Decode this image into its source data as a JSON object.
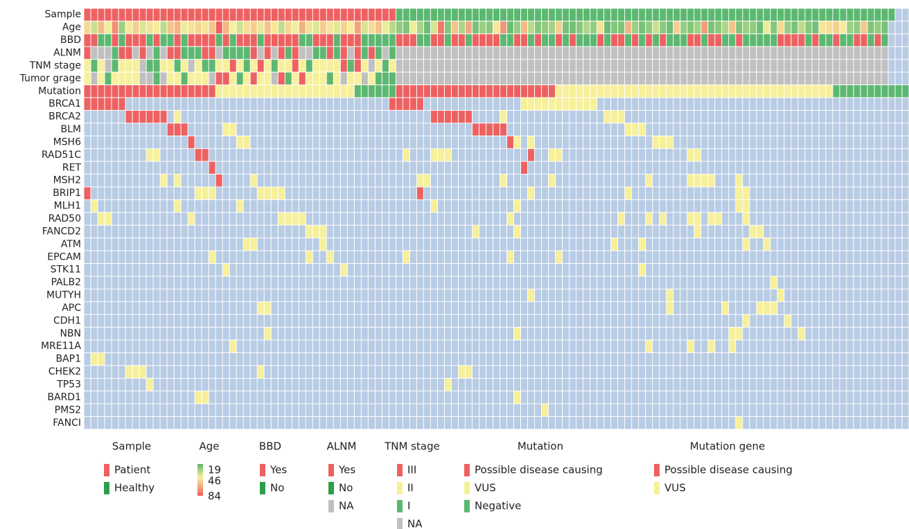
{
  "chart_data": {
    "type": "heatmap",
    "background": "#b8cce4",
    "rows": [
      {
        "name": "Sample",
        "colors": [
          "#ee6161",
          "#5cb870"
        ],
        "values": "000000000000000000000000000000000000000000000111111111111111111111111111111111111111111111111111111111111111111111111"
      },
      {
        "name": "Age",
        "values": [
          52,
          38,
          60,
          45,
          72,
          30,
          48,
          55,
          41,
          50,
          47,
          36,
          58,
          62,
          44,
          50,
          53,
          49,
          57,
          84,
          61,
          46,
          39,
          51,
          55,
          43,
          58,
          48,
          37,
          52,
          45,
          63,
          50,
          41,
          56,
          49,
          42,
          54,
          47,
          66,
          40,
          51,
          58,
          44,
          35,
          28,
          25,
          45,
          32,
          22,
          40,
          78,
          26,
          58,
          33,
          65,
          24,
          30,
          27,
          48,
          70,
          22,
          29,
          60,
          35,
          26,
          28,
          31,
          55,
          24,
          23,
          27,
          34,
          29,
          50,
          21,
          26,
          25,
          62,
          30,
          24,
          28,
          38,
          27,
          22,
          55,
          29,
          26,
          31,
          68,
          24,
          27,
          33,
          58,
          25,
          30,
          28,
          22,
          44,
          26,
          52,
          29,
          24,
          36,
          27,
          23,
          49,
          51,
          55,
          47,
          30,
          28,
          57,
          25,
          29,
          24
        ]
      },
      {
        "name": "BBD",
        "colors": [
          "#ee6161",
          "#5cb870"
        ],
        "values": "00110100010110100001010001000001100010001111100011001001000011001011010111010010101011100100110111110000101101100101"
      },
      {
        "name": "ALNM",
        "colors": [
          "#ee6161",
          "#5cb870",
          "#c0c0c0"
        ],
        "values": "02221002021200111002111102020102211010201012122222222222222222222222222222222222222222222222222222222222222222222222"
      },
      {
        "name": "TNM stage",
        "colors": [
          "#ee6161",
          "#f7f09a",
          "#5cb870",
          "#c0c0c0"
        ],
        "values": "12132111322112131221101210121101211110201312133333333333333333333333333333333333333333333333333333333333333333333333"
      },
      {
        "name": "Tumor grage",
        "colors": [
          "#ee6161",
          "#f7f09a",
          "#5cb870",
          "#c0c0c0"
        ],
        "values": "13121111332311211130012101130210111213113122233333333333333333333333333333333333333333333333333333333333333333333333"
      },
      {
        "name": "Mutation",
        "colors": [
          "#ee6161",
          "#f7f09a",
          "#5cb870"
        ],
        "values": "00000000000000000001111111111111111111122222200000000000000000000000111111111111111111111111111111111111111122222222222"
      },
      {
        "name": "BRCA1",
        "colors": [
          "#ee6161",
          "#f7f09a"
        ],
        "values": "000000......................................00000..............11111111111..........................................."
      },
      {
        "name": "BRCA2",
        "colors": [
          "#ee6161",
          "#f7f09a"
        ],
        "values": "......000000.1....................................000000....1..............111......................................"
      },
      {
        "name": "BLM",
        "colors": [
          "#ee6161",
          "#f7f09a"
        ],
        "values": "............000.....11..................................00000.................111..................................."
      },
      {
        "name": "MSH6",
        "colors": [
          "#ee6161",
          "#f7f09a"
        ],
        "values": "...............0......11.....................................01.1.................111................................"
      },
      {
        "name": "RAD51C",
        "colors": [
          "#ee6161",
          "#f7f09a"
        ],
        "values": ".........11.....00............................1...111...........0..11..................11.............................."
      },
      {
        "name": "RET",
        "colors": [
          "#ee6161",
          "#f7f09a"
        ],
        "values": "..................0............................................0...................................................."
      },
      {
        "name": "MSH2",
        "colors": [
          "#ee6161",
          "#f7f09a"
        ],
        "values": "...........1.1.....0....1.......................11..........1......1.............1.....1111...1....................."
      },
      {
        "name": "BRIP1",
        "colors": [
          "#ee6161",
          "#f7f09a"
        ],
        "values": "0...............111......1111...................0...............1.............1...............11......................"
      },
      {
        "name": "MLH1",
        "colors": [
          "#ee6161",
          "#f7f09a"
        ],
        "values": ".1...........1........1...........................1...........1...............................11......................"
      },
      {
        "name": "RAD50",
        "colors": [
          "#ee6161",
          "#f7f09a"
        ],
        "values": "..11...........1............1111.............................1...............1...1.1...11.11...1...................."
      },
      {
        "name": "FANCD2",
        "colors": [
          "#ee6161",
          "#f7f09a"
        ],
        "values": "................................111.....................1.....1.........................1.......11.................."
      },
      {
        "name": "ATM",
        "colors": [
          "#ee6161",
          "#f7f09a"
        ],
        "values": ".......................11.........1.........................................1...1..............1..1................."
      },
      {
        "name": "EPCAM",
        "colors": [
          "#ee6161",
          "#f7f09a"
        ],
        "values": "..................1.............1..1..........1..............1......1.............................................."
      },
      {
        "name": "STK11",
        "colors": [
          "#ee6161",
          "#f7f09a"
        ],
        "values": "....................1................1..........................................1..................................."
      },
      {
        "name": "PALB2",
        "colors": [
          "#ee6161",
          "#f7f09a"
        ],
        "values": "...................................................................................................1................"
      },
      {
        "name": "MUTYH",
        "colors": [
          "#ee6161",
          "#f7f09a"
        ],
        "values": "................................................................1...................1...............1..............."
      },
      {
        "name": "APC",
        "colors": [
          "#ee6161",
          "#f7f09a"
        ],
        "values": ".........................11.........................................................1.......1....111................"
      },
      {
        "name": "CDH1",
        "colors": [
          "#ee6161",
          "#f7f09a"
        ],
        "values": "...............................................................................................1.....1.............."
      },
      {
        "name": "NBN",
        "colors": [
          "#ee6161",
          "#f7f09a"
        ],
        "values": "..........................1...................................1..............................11........1............."
      },
      {
        "name": "MRE11A",
        "colors": [
          "#ee6161",
          "#f7f09a"
        ],
        "values": ".....................1...........................................................1.....1..1..1......................"
      },
      {
        "name": "BAP1",
        "colors": [
          "#ee6161",
          "#f7f09a"
        ],
        "values": ".11................................................................................................................."
      },
      {
        "name": "CHEK2",
        "colors": [
          "#ee6161",
          "#f7f09a"
        ],
        "values": "......111................1............................11............................................................"
      },
      {
        "name": "TP53",
        "colors": [
          "#ee6161",
          "#f7f09a"
        ],
        "values": ".........1..........................................1..............................................................."
      },
      {
        "name": "BARD1",
        "colors": [
          "#ee6161",
          "#f7f09a"
        ],
        "values": "................11............................................1....................................................."
      },
      {
        "name": "PMS2",
        "colors": [
          "#ee6161",
          "#f7f09a"
        ],
        "values": "..................................................................1................................................."
      },
      {
        "name": "FANCI",
        "colors": [
          "#ee6161",
          "#f7f09a"
        ],
        "values": "..............................................................................................1....................."
      }
    ],
    "legends": [
      {
        "title": "Sample",
        "items": [
          {
            "label": "Patient",
            "color": "#ee6161"
          },
          {
            "label": "Healthy",
            "color": "#2e9e4a"
          }
        ]
      },
      {
        "title": "Age",
        "ticks": [
          19,
          46,
          84
        ],
        "colors": [
          "#5cb870",
          "#f7f09a",
          "#ee6161"
        ]
      },
      {
        "title": "BBD",
        "items": [
          {
            "label": "Yes",
            "color": "#ee6161"
          },
          {
            "label": "No",
            "color": "#2e9e4a"
          }
        ]
      },
      {
        "title": "ALNM",
        "items": [
          {
            "label": "Yes",
            "color": "#ee6161"
          },
          {
            "label": "No",
            "color": "#2e9e4a"
          },
          {
            "label": "NA",
            "color": "#c0c0c0"
          }
        ]
      },
      {
        "title": "TNM stage",
        "items": [
          {
            "label": "III",
            "color": "#ee6161"
          },
          {
            "label": "II",
            "color": "#f7f09a"
          },
          {
            "label": "I",
            "color": "#5cb870"
          },
          {
            "label": "NA",
            "color": "#c0c0c0"
          }
        ]
      },
      {
        "title": "Mutation",
        "items": [
          {
            "label": "Possible disease causing",
            "color": "#ee6161"
          },
          {
            "label": "VUS",
            "color": "#f7f09a"
          },
          {
            "label": "Negative",
            "color": "#5cb870"
          }
        ]
      },
      {
        "title": "Mutation gene",
        "items": [
          {
            "label": "Possible disease causing",
            "color": "#ee6161"
          },
          {
            "label": "VUS",
            "color": "#f7f09a"
          }
        ]
      }
    ]
  }
}
